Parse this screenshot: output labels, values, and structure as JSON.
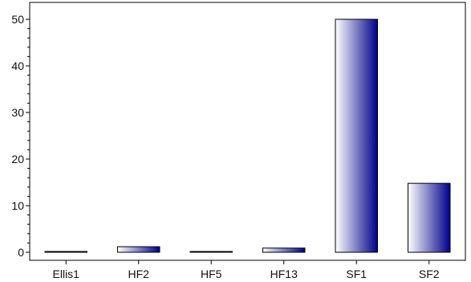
{
  "chart_data": {
    "type": "bar",
    "title": "",
    "xlabel": "",
    "ylabel": "",
    "categories": [
      "Ellis1",
      "HF2",
      "HF5",
      "HF13",
      "SF1",
      "SF2"
    ],
    "values": [
      0.1,
      1.2,
      0.1,
      0.9,
      50,
      14.8
    ],
    "ylim": [
      0,
      52
    ],
    "y_ticks": [
      "0",
      "10",
      "20",
      "30",
      "40",
      "50"
    ],
    "y_tick_values": [
      0,
      10,
      20,
      30,
      40,
      50
    ],
    "grid": false,
    "legend": "none",
    "bar_gradient": [
      "#ffffff",
      "#00008b"
    ]
  }
}
